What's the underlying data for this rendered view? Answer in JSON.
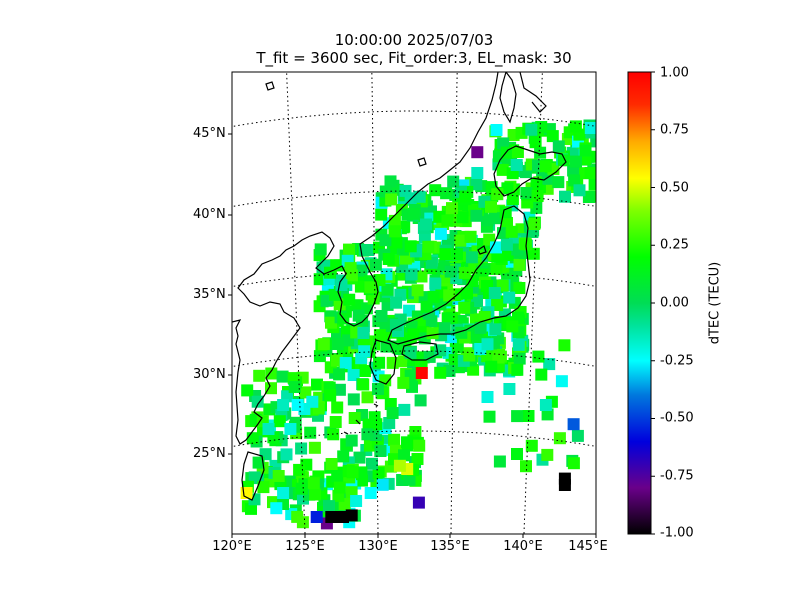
{
  "title": {
    "line1": "10:00:00 2025/07/03",
    "line2": "T_fit = 3600 sec, Fit_order:3, EL_mask: 30"
  },
  "map": {
    "lon_range": [
      120,
      145
    ],
    "lat_range": [
      20,
      49
    ],
    "lat_labels": [
      "45°N",
      "40°N",
      "35°N",
      "30°N",
      "25°N"
    ],
    "lon_labels": [
      "120°E",
      "125°E",
      "130°E",
      "135°E",
      "140°E",
      "145°E"
    ],
    "gridlines": "dotted"
  },
  "colorbar": {
    "label": "dTEC (TECU)",
    "range": [
      -1.0,
      1.0
    ],
    "ticks": [
      "1.00",
      "0.75",
      "0.50",
      "0.25",
      "0.00",
      "-0.25",
      "-0.50",
      "-0.75",
      "-1.00"
    ],
    "colormap": "nipy_spectral"
  },
  "dtec_points": [
    {
      "lon": 133.0,
      "lat": 30.0,
      "dtec": 0.98
    },
    {
      "lon": 121.0,
      "lat": 22.5,
      "dtec": 0.55
    },
    {
      "lon": 132.0,
      "lat": 24.0,
      "dtec": 0.5
    },
    {
      "lon": 131.5,
      "lat": 24.2,
      "dtec": 0.45
    },
    {
      "lon": 136.8,
      "lat": 43.8,
      "dtec": -0.8
    },
    {
      "lon": 132.8,
      "lat": 21.9,
      "dtec": -0.7
    },
    {
      "lon": 126.5,
      "lat": 20.6,
      "dtec": -0.8
    },
    {
      "lon": 125.8,
      "lat": 21.0,
      "dtec": -0.55
    },
    {
      "lon": 126.8,
      "lat": 21.0,
      "dtec": -1.0
    },
    {
      "lon": 127.6,
      "lat": 21.0,
      "dtec": -1.0
    },
    {
      "lon": 128.2,
      "lat": 21.1,
      "dtec": -1.0
    },
    {
      "lon": 142.8,
      "lat": 23.0,
      "dtec": -1.0
    },
    {
      "lon": 142.8,
      "lat": 23.4,
      "dtec": -1.0
    },
    {
      "lon": 143.4,
      "lat": 26.8,
      "dtec": -0.45
    },
    {
      "lon": 123.5,
      "lat": 22.5,
      "dtec": -0.2
    },
    {
      "lon": 129.5,
      "lat": 22.5,
      "dtec": -0.25
    },
    {
      "lon": 128.5,
      "lat": 22.0,
      "dtec": -0.2
    },
    {
      "lon": 124.5,
      "lat": 28.0,
      "dtec": -0.25
    },
    {
      "lon": 125.5,
      "lat": 28.2,
      "dtec": -0.2
    },
    {
      "lon": 123.5,
      "lat": 28.0,
      "dtec": -0.15
    },
    {
      "lon": 122.5,
      "lat": 26.5,
      "dtec": -0.15
    },
    {
      "lon": 124.0,
      "lat": 26.5,
      "dtec": -0.2
    },
    {
      "lon": 139.0,
      "lat": 29.0,
      "dtec": -0.15
    },
    {
      "lon": 137.5,
      "lat": 28.5,
      "dtec": -0.2
    },
    {
      "lon": 141.5,
      "lat": 28.0,
      "dtec": -0.15
    },
    {
      "lon": 137.0,
      "lat": 31.5,
      "dtec": -0.2
    },
    {
      "lon": 137.5,
      "lat": 31.8,
      "dtec": -0.15
    },
    {
      "lon": 136.8,
      "lat": 42.5,
      "dtec": -0.15
    },
    {
      "lon": 139.5,
      "lat": 43.0,
      "dtec": -0.12
    },
    {
      "lon": 127.5,
      "lat": 35.5,
      "dtec": -0.1
    },
    {
      "lon": 129.0,
      "lat": 32.5,
      "dtec": -0.1
    },
    {
      "lon": 138.0,
      "lat": 35.0,
      "dtec": -0.08
    },
    {
      "lon": 130.0,
      "lat": 29.0,
      "dtec": 0.05
    },
    {
      "lon": 131.0,
      "lat": 27.5,
      "dtec": 0.08
    }
  ]
}
